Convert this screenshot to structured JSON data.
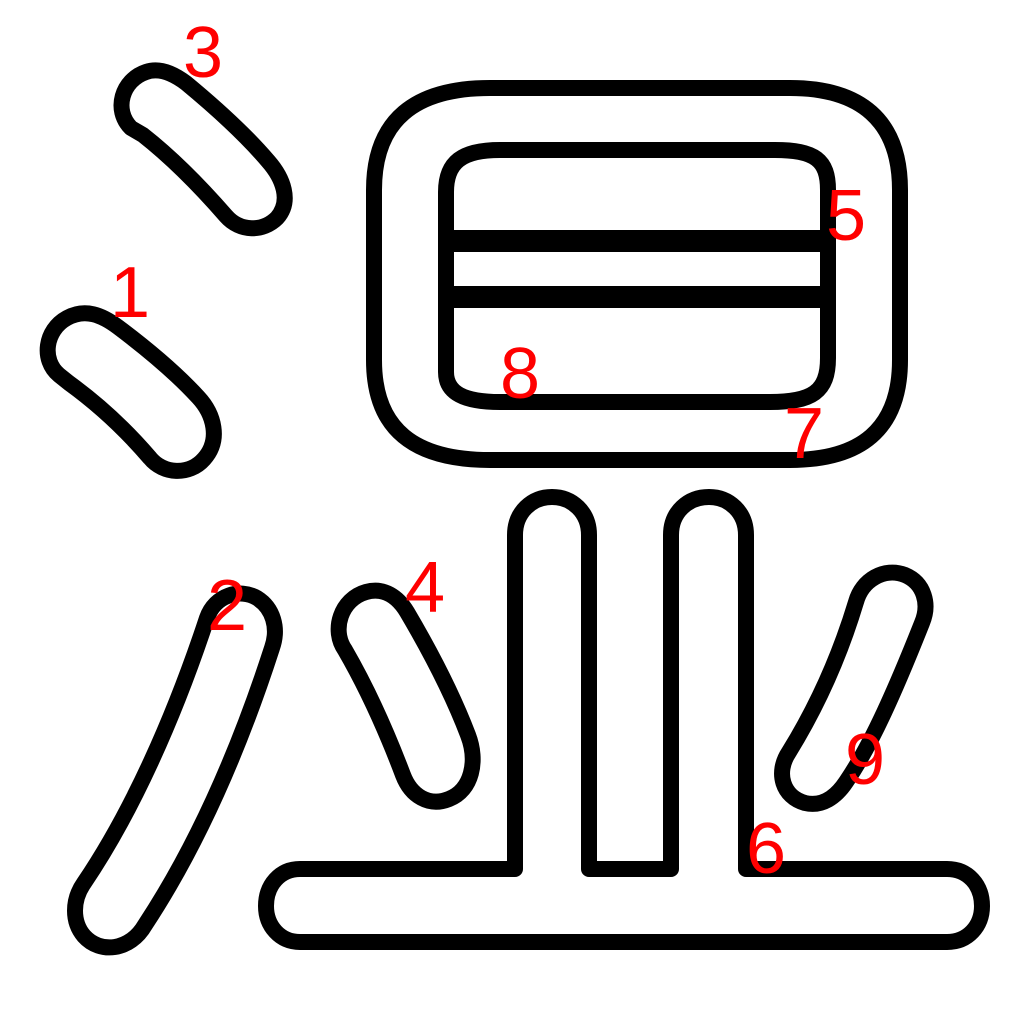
{
  "character_strokes": [
    {
      "order": "1",
      "shape": "dot"
    },
    {
      "order": "2",
      "shape": "left-falling"
    },
    {
      "order": "3",
      "shape": "dot"
    },
    {
      "order": "4",
      "shape": "dot"
    },
    {
      "order": "5",
      "shape": "box-top"
    },
    {
      "order": "6",
      "shape": "base-with-verticals"
    },
    {
      "order": "7",
      "shape": "box-outer"
    },
    {
      "order": "8",
      "shape": "box-bottom"
    },
    {
      "order": "9",
      "shape": "dot"
    }
  ],
  "colors": {
    "outline": "#000000",
    "fill": "#ffffff",
    "number": "#ff0000"
  }
}
